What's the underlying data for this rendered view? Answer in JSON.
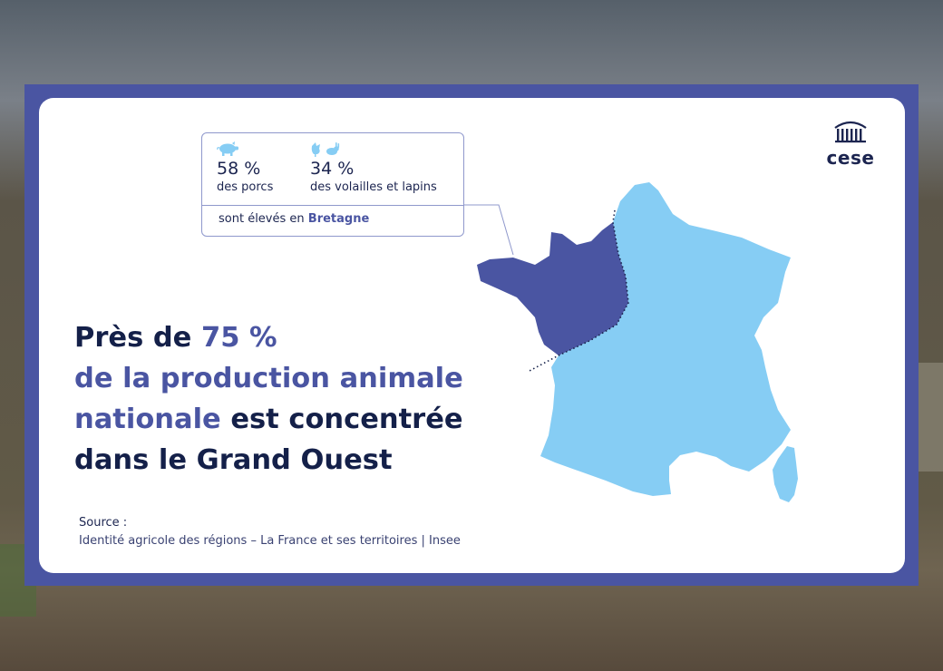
{
  "callout": {
    "stat_pigs": {
      "icon": "pig-icon",
      "value": "58 %",
      "label": "des porcs"
    },
    "stat_poultry": {
      "icon": "poultry-rabbit-icon",
      "value": "34 %",
      "label": "des volailles et lapins"
    },
    "footer_prefix": "sont élevés en",
    "footer_region": "Bretagne"
  },
  "headline": {
    "part1": "Près de ",
    "part2_accent": "75 %",
    "line2_accent": "de la production animale",
    "line3_accent": "nationale",
    "line3_rest": " est concentrée",
    "line4": "dans le Grand Ouest"
  },
  "source": {
    "title": "Source :",
    "text": "Identité agricole des régions – La France et ses territoires | Insee"
  },
  "logo": {
    "icon": "building-columns-icon",
    "text": "cese"
  },
  "colors": {
    "frame": "#4a55a2",
    "dark_text": "#142049",
    "accent": "#4a55a2",
    "map_highlight": "#4a55a2",
    "map_rest": "#86cdf4"
  }
}
